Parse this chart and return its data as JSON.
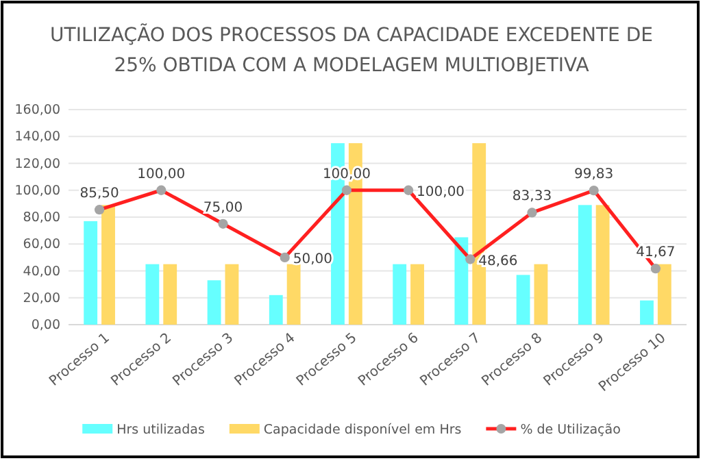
{
  "chart_data": {
    "type": "bar",
    "title": "UTILIZAÇÃO DOS PROCESSOS DA CAPACIDADE EXCEDENTE DE 25% OBTIDA COM A MODELAGEM MULTIOBJETIVA",
    "categories": [
      "Processo 1",
      "Processo 2",
      "Processo 3",
      "Processo 4",
      "Processo 5",
      "Processo 6",
      "Processo 7",
      "Processo 8",
      "Processo 9",
      "Processo 10"
    ],
    "series": [
      {
        "name": "Hrs utilizadas",
        "color": "#66ffff",
        "values": [
          77,
          45,
          33,
          22,
          135,
          45,
          65,
          37,
          89,
          18
        ]
      },
      {
        "name": "Capacidade disponível em Hrs",
        "color": "#ffd966",
        "values": [
          89,
          45,
          45,
          45,
          135,
          45,
          135,
          45,
          89,
          45
        ]
      },
      {
        "name": "% de Utilização",
        "type": "line",
        "color": "#ff2020",
        "marker": "circle",
        "values": [
          85.5,
          100,
          75,
          50,
          100,
          100,
          48.66,
          83.33,
          99.83,
          41.67
        ],
        "value_labels": [
          "85,50",
          "100,00",
          "75,00",
          "50,00",
          "100,00",
          "100,00",
          "48,66",
          "83,33",
          "99,83",
          "41,67"
        ]
      }
    ],
    "ylim": [
      0,
      160
    ],
    "yticks": [
      {
        "value": 0,
        "label": "0,00"
      },
      {
        "value": 20,
        "label": "20,00"
      },
      {
        "value": 40,
        "label": "40,00"
      },
      {
        "value": 60,
        "label": "60,00"
      },
      {
        "value": 80,
        "label": "80,00"
      },
      {
        "value": 100,
        "label": "100,00"
      },
      {
        "value": 120,
        "label": "120,00"
      },
      {
        "value": 140,
        "label": "140,00"
      },
      {
        "value": 160,
        "label": "160,00"
      }
    ],
    "grid": "y",
    "legend": "bottom"
  }
}
